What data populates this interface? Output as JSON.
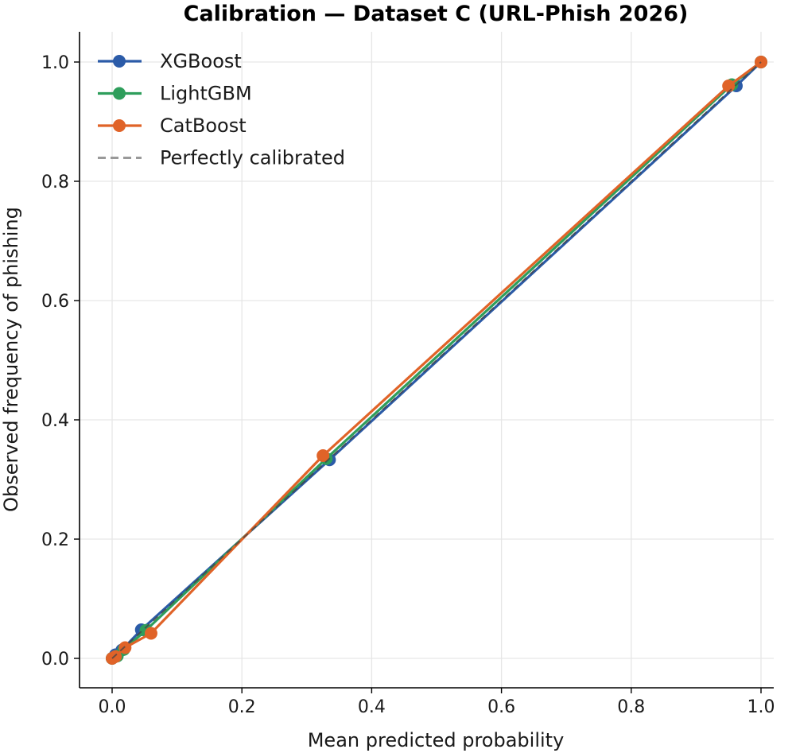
{
  "chart_data": {
    "type": "line",
    "title": "Calibration — Dataset C (URL-Phish 2026)",
    "xlabel": "Mean predicted probability",
    "ylabel": "Observed frequency of phishing",
    "xlim": [
      -0.05,
      1.02
    ],
    "ylim": [
      -0.05,
      1.05
    ],
    "xticks": [
      0.0,
      0.2,
      0.4,
      0.6,
      0.8,
      1.0
    ],
    "yticks": [
      0.0,
      0.2,
      0.4,
      0.6,
      0.8,
      1.0
    ],
    "tick_labels": [
      "0.0",
      "0.2",
      "0.4",
      "0.6",
      "0.8",
      "1.0"
    ],
    "grid": true,
    "legend_position": "top-left",
    "series": [
      {
        "name": "XGBoost",
        "color": "#2b5ba8",
        "x": [
          0.0,
          0.005,
          0.015,
          0.045,
          0.335,
          0.962,
          1.0
        ],
        "y": [
          0.0,
          0.006,
          0.014,
          0.048,
          0.333,
          0.96,
          1.0
        ]
      },
      {
        "name": "LightGBM",
        "color": "#2e9e5b",
        "x": [
          0.0,
          0.008,
          0.018,
          0.052,
          0.33,
          0.955,
          1.0
        ],
        "y": [
          0.0,
          0.004,
          0.015,
          0.047,
          0.335,
          0.962,
          1.0
        ]
      },
      {
        "name": "CatBoost",
        "color": "#e06328",
        "x": [
          0.0,
          0.005,
          0.02,
          0.06,
          0.325,
          0.95,
          1.0
        ],
        "y": [
          0.0,
          0.003,
          0.018,
          0.042,
          0.34,
          0.96,
          1.0
        ]
      }
    ],
    "reference": {
      "name": "Perfectly calibrated",
      "color": "#999999",
      "x": [
        0.0,
        1.0
      ],
      "y": [
        0.0,
        1.0
      ]
    }
  }
}
